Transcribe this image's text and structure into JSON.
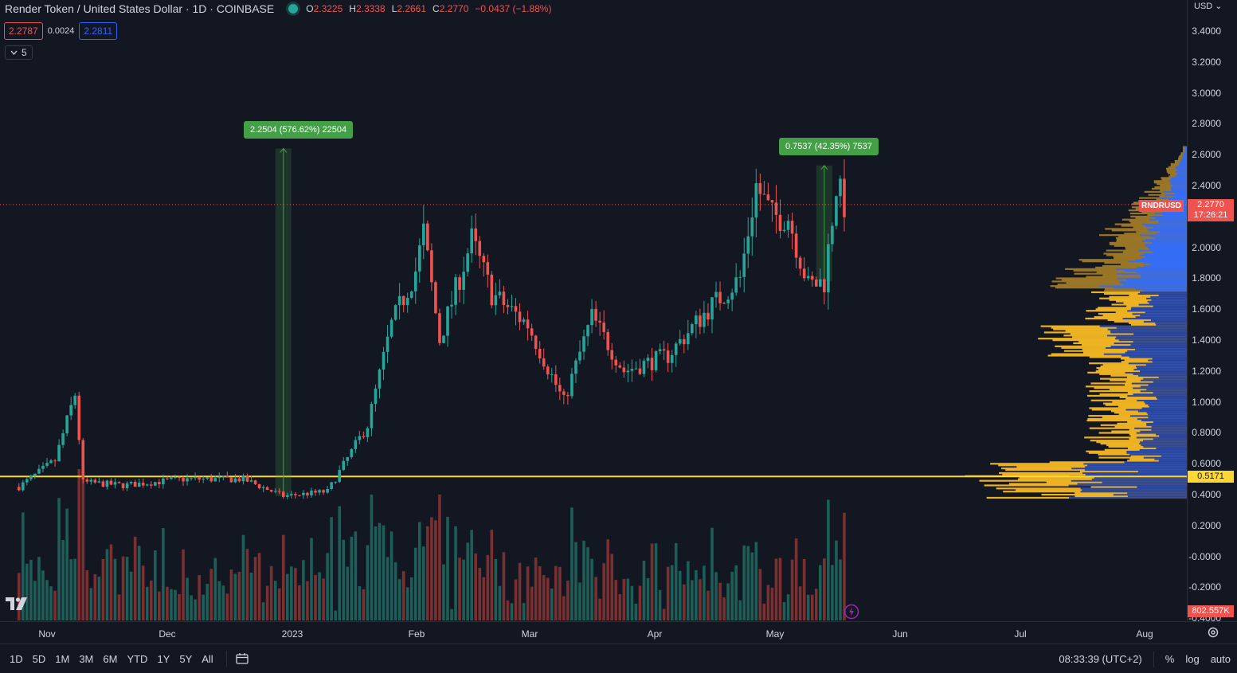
{
  "header": {
    "title": "Render Token / United States Dollar · 1D · COINBASE",
    "ohlc": {
      "o_label": "O",
      "o": "2.3225",
      "h_label": "H",
      "h": "2.3338",
      "l_label": "L",
      "l": "2.2661",
      "c_label": "C",
      "c": "2.2770",
      "change": "−0.0437 (−1.88%)"
    }
  },
  "quote": {
    "bid": "2.2787",
    "spread": "0.0024",
    "ask": "2.2811"
  },
  "indicators_collapse": {
    "count": "5"
  },
  "measures": [
    {
      "label": "2.2504 (576.62%) 22504"
    },
    {
      "label": "0.7537 (42.35%) 7537"
    }
  ],
  "price_axis": {
    "currency": "USD",
    "labels": [
      "3.4000",
      "3.2000",
      "3.0000",
      "2.8000",
      "2.6000",
      "2.4000",
      "2.2000",
      "2.0000",
      "1.8000",
      "1.6000",
      "1.4000",
      "1.2000",
      "1.0000",
      "0.8000",
      "0.6000",
      "0.4000",
      "0.2000",
      "-0.0000",
      "-0.2000",
      "-0.4000"
    ],
    "last_price": "2.2770",
    "countdown": "17:26:21",
    "symbol_tag": "RNDRUSD",
    "level": "0.5171",
    "volume": "802.557K"
  },
  "time_axis": {
    "labels": [
      "Nov",
      "Dec",
      "2023",
      "Feb",
      "Mar",
      "Apr",
      "May",
      "Jun",
      "Jul",
      "Aug"
    ]
  },
  "bottom_bar": {
    "ranges": [
      "1D",
      "5D",
      "1M",
      "3M",
      "6M",
      "YTD",
      "1Y",
      "5Y",
      "All"
    ],
    "clock": "08:33:39 (UTC+2)",
    "percent": "%",
    "log": "log",
    "auto": "auto"
  },
  "colors": {
    "up": "#26a69a",
    "down": "#ef5350",
    "level": "#fdd835",
    "measure": "#43a047",
    "profile_up": "#2962ff",
    "profile_down": "#f7b924"
  },
  "chart_data": {
    "type": "candlestick",
    "symbol": "RNDRUSD",
    "interval": "1D",
    "x_range": [
      "2022-10-25",
      "2023-08-20"
    ],
    "ylim": [
      -0.4,
      3.4
    ],
    "horizontal_level": 0.5171,
    "last_price": 2.277,
    "keypoints": [
      {
        "date": "2022-10-25",
        "price": 0.45
      },
      {
        "date": "2022-11-03",
        "price": 0.62
      },
      {
        "date": "2022-11-08",
        "price": 1.05
      },
      {
        "date": "2022-11-10",
        "price": 0.48
      },
      {
        "date": "2022-11-20",
        "price": 0.46
      },
      {
        "date": "2022-12-05",
        "price": 0.5
      },
      {
        "date": "2022-12-20",
        "price": 0.5
      },
      {
        "date": "2022-12-30",
        "price": 0.39
      },
      {
        "date": "2023-01-10",
        "price": 0.42
      },
      {
        "date": "2023-01-20",
        "price": 0.85
      },
      {
        "date": "2023-01-26",
        "price": 1.5
      },
      {
        "date": "2023-02-01",
        "price": 1.85
      },
      {
        "date": "2023-02-03",
        "price": 2.1
      },
      {
        "date": "2023-02-07",
        "price": 1.4
      },
      {
        "date": "2023-02-15",
        "price": 2.05
      },
      {
        "date": "2023-02-20",
        "price": 1.7
      },
      {
        "date": "2023-03-01",
        "price": 1.5
      },
      {
        "date": "2023-03-10",
        "price": 1.0
      },
      {
        "date": "2023-03-17",
        "price": 1.55
      },
      {
        "date": "2023-03-25",
        "price": 1.2
      },
      {
        "date": "2023-04-05",
        "price": 1.3
      },
      {
        "date": "2023-04-15",
        "price": 1.6
      },
      {
        "date": "2023-04-23",
        "price": 1.8
      },
      {
        "date": "2023-04-27",
        "price": 2.4
      },
      {
        "date": "2023-05-01",
        "price": 2.2
      },
      {
        "date": "2023-05-05",
        "price": 2.2
      },
      {
        "date": "2023-05-10",
        "price": 1.75
      },
      {
        "date": "2023-05-14",
        "price": 1.78
      },
      {
        "date": "2023-05-17",
        "price": 2.4
      },
      {
        "date": "2023-05-19",
        "price": 2.277
      }
    ],
    "measurements": [
      {
        "from_date": "2022-12-30",
        "from_price": 0.39,
        "to_price": 2.64,
        "change": 2.2504,
        "percent": 576.62
      },
      {
        "from_date": "2023-05-14",
        "from_price": 1.78,
        "to_price": 2.53,
        "change": 0.7537,
        "percent": 42.35
      }
    ]
  }
}
